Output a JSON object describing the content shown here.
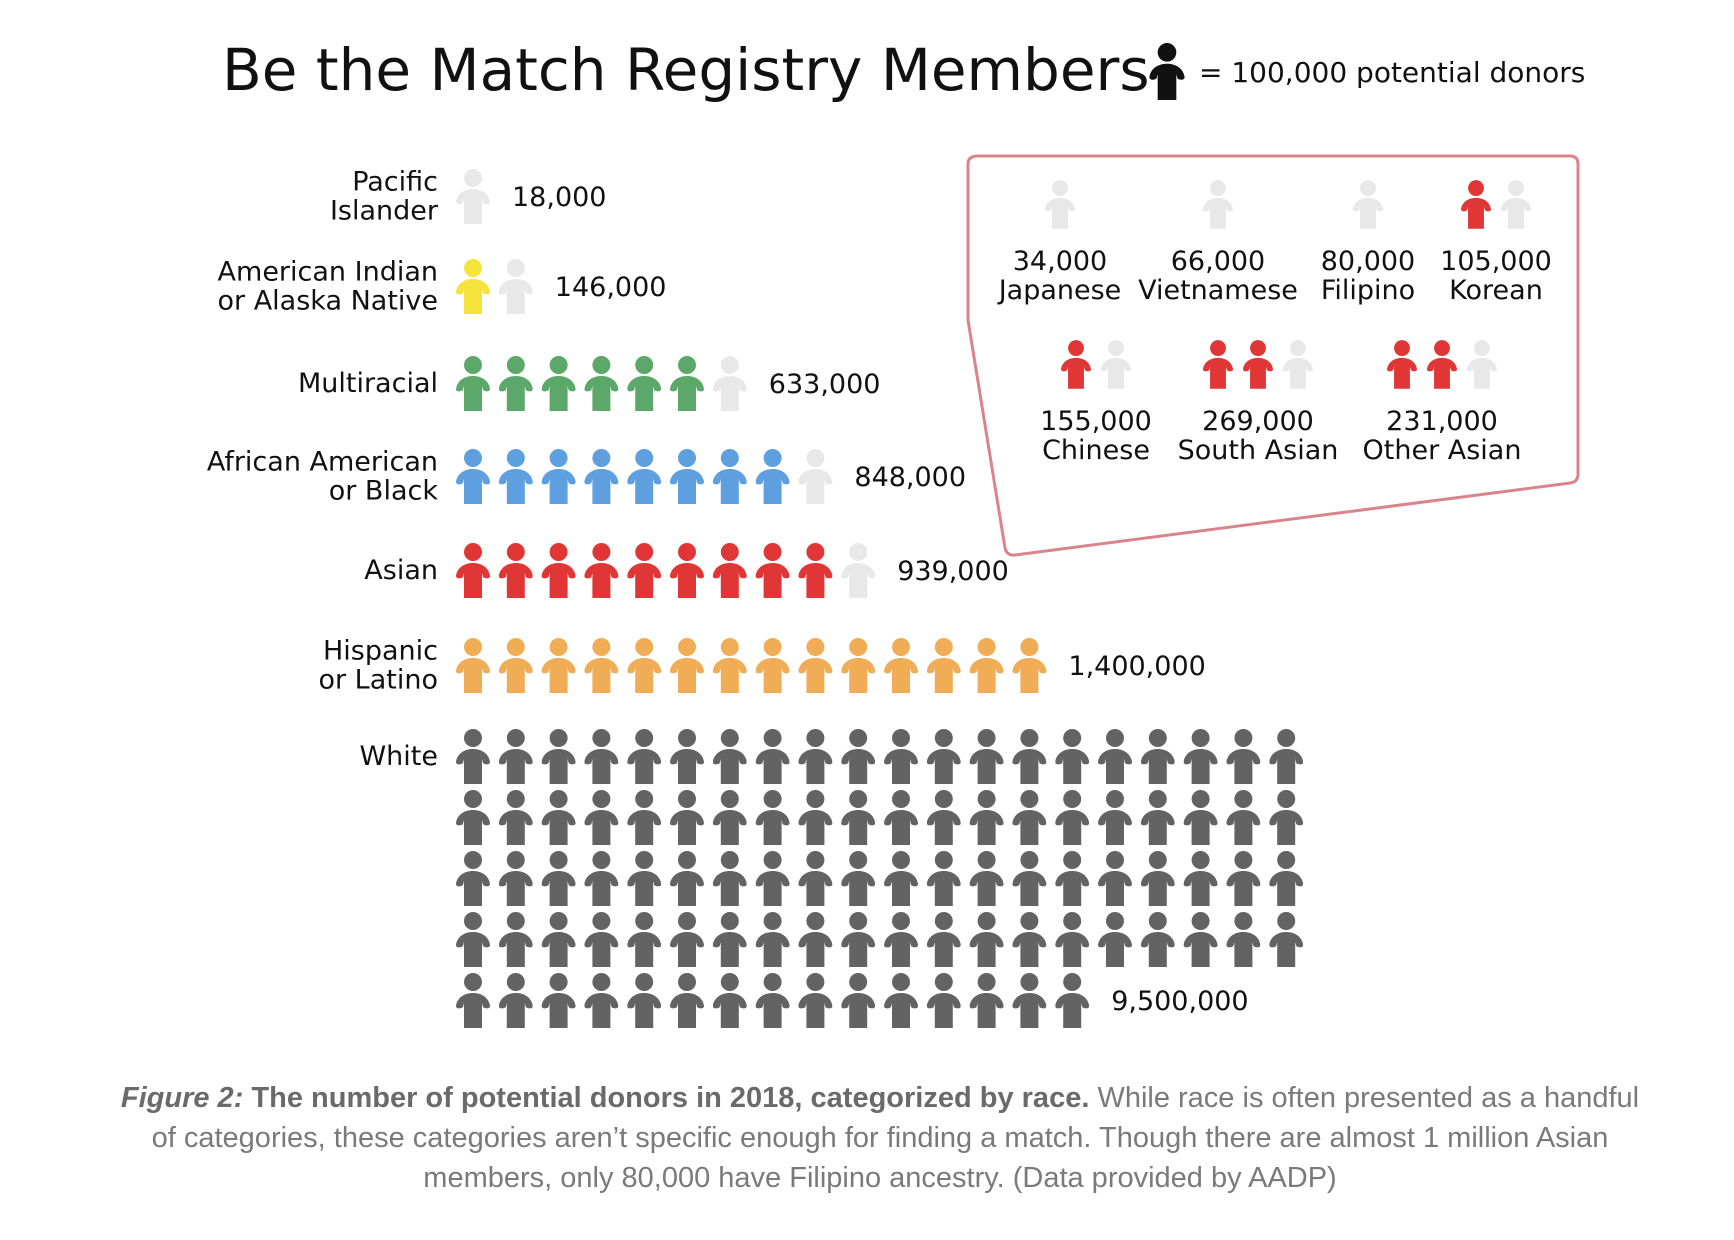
{
  "title": "Be the Match Registry Members",
  "legend": {
    "text": "= 100,000 potential donors",
    "unit_value": 100000
  },
  "colors": {
    "Pacific Islander": "#b36bc2",
    "American Indian or Alaska Native": "#f5e23a",
    "Multiracial": "#5ba86a",
    "African American or Black": "#5e9fe0",
    "Asian": "#e03636",
    "Hispanic or Latino": "#f0ad55",
    "White": "#636363",
    "empty": "#e8e8e8",
    "legend_icon": "#111111",
    "callout_border": "#d9848b",
    "asian_value_text": "#e03636"
  },
  "icon": "person-icon",
  "chart_data": {
    "type": "pictograph",
    "title": "Be the Match Registry Members",
    "unit": "= 100,000 potential donors",
    "categories": [
      {
        "label_lines": [
          "Pacific",
          "Islander"
        ],
        "value": 18000,
        "value_label": "18,000"
      },
      {
        "label_lines": [
          "American Indian",
          "or Alaska Native"
        ],
        "value": 146000,
        "value_label": "146,000"
      },
      {
        "label_lines": [
          "Multiracial"
        ],
        "value": 633000,
        "value_label": "633,000"
      },
      {
        "label_lines": [
          "African American",
          "or Black"
        ],
        "value": 848000,
        "value_label": "848,000"
      },
      {
        "label_lines": [
          "Asian"
        ],
        "value": 939000,
        "value_label": "939,000"
      },
      {
        "label_lines": [
          "Hispanic",
          "or Latino"
        ],
        "value": 1400000,
        "value_label": "1,400,000"
      },
      {
        "label_lines": [
          "White"
        ],
        "value": 9500000,
        "value_label": "9,500,000"
      }
    ],
    "asian_breakdown": [
      {
        "name": "Japanese",
        "value": 34000,
        "value_label": "34,000"
      },
      {
        "name": "Vietnamese",
        "value": 66000,
        "value_label": "66,000"
      },
      {
        "name": "Filipino",
        "value": 80000,
        "value_label": "80,000"
      },
      {
        "name": "Korean",
        "value": 105000,
        "value_label": "105,000"
      },
      {
        "name": "Chinese",
        "value": 155000,
        "value_label": "155,000"
      },
      {
        "name": "South Asian",
        "value": 269000,
        "value_label": "269,000"
      },
      {
        "name": "Other Asian",
        "value": 231000,
        "value_label": "231,000"
      }
    ]
  },
  "caption": {
    "figure_label": "Figure 2:",
    "bold_text": "The number of potential donors in 2018, categorized by race.",
    "body": "While race is often presented as a handful of categories, these categories aren’t specific enough for finding a match. Though there are almost 1 million Asian members, only 80,000 have Filipino ancestry. (Data provided by AADP)"
  }
}
